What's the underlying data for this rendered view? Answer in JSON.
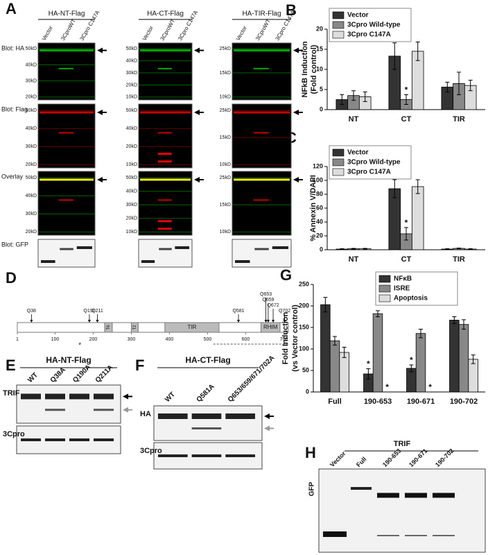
{
  "letters": [
    "A",
    "B",
    "C",
    "D",
    "E",
    "F",
    "G",
    "H"
  ],
  "panel_a": {
    "rows": [
      "Blot: HA",
      "Blot: Flag",
      "Overlay",
      "Blot: GFP"
    ],
    "columns": [
      {
        "title": "HA-NT-Flag",
        "lanes": [
          "Vector",
          "3CproWT",
          "3Cpro C147A"
        ],
        "markers": [
          [
            "50kD",
            "40kD",
            "30kD",
            "20kD"
          ],
          [
            "50kD",
            "40kD",
            "30kD",
            "20kD"
          ],
          [
            "50kD",
            "40kD",
            "30kD",
            "20kD"
          ]
        ]
      },
      {
        "title": "HA-CT-Flag",
        "lanes": [
          "Vector",
          "3CproWT",
          "3Cpro C147A"
        ],
        "markers": [
          [
            "50kD",
            "40kD",
            "30kD",
            "20kD",
            "10kD"
          ],
          [
            "50kD",
            "40kD",
            "20kD",
            "10kD"
          ],
          [
            "50kD",
            "40kD",
            "30kD",
            "20kD",
            "10kD"
          ]
        ]
      },
      {
        "title": "HA-TIR-Flag",
        "lanes": [
          "Vector",
          "3CproWT",
          "3Cpro C147A"
        ],
        "markers": [
          [
            "25kD",
            "15kD",
            "10kD"
          ],
          [
            "25kD",
            "15kD",
            "10kD"
          ],
          [
            "25kD",
            "15kD",
            "10kD"
          ]
        ]
      }
    ]
  },
  "panel_d": {
    "sites": [
      "Q38",
      "Q190",
      "Q211",
      "Q581",
      "Q653",
      "Q659",
      "Q672",
      "Q702"
    ],
    "domains": [
      "T6",
      "T2",
      "TIR",
      "RHIM"
    ],
    "scale": [
      1,
      100,
      200,
      300,
      400,
      500,
      600,
      700
    ],
    "note": "*"
  },
  "panel_e": {
    "title": "HA-NT-Flag",
    "lanes": [
      "WT",
      "Q38A",
      "Q190A",
      "Q211A"
    ],
    "rows": [
      "TRIF",
      "3Cpro"
    ]
  },
  "panel_f": {
    "title": "HA-CT-Flag",
    "lanes": [
      "WT",
      "Q581A",
      "Q653/659/671/702A"
    ],
    "rows": [
      "HA",
      "3Cpro"
    ]
  },
  "panel_h": {
    "group": "TRIF",
    "lanes": [
      "Vector",
      "Full",
      "190-653",
      "190-671",
      "190-702"
    ],
    "row": "GFP"
  },
  "chart_data": [
    {
      "type": "bar",
      "ylabel": [
        "NFkB Induction",
        "(Fold control)"
      ],
      "categories": [
        "NT",
        "CT",
        "TIR"
      ],
      "ylim": [
        0,
        20
      ],
      "yticks": [
        0,
        5,
        10,
        15,
        20
      ],
      "legend": "upper left",
      "series": [
        {
          "name": "Vector",
          "color": "#333333",
          "values": [
            2.5,
            13.3,
            5.6
          ],
          "errors": [
            1.2,
            3.3,
            1.2
          ],
          "annotations": [
            null,
            null,
            null
          ]
        },
        {
          "name": "3Cpro Wild-type",
          "color": "#888888",
          "values": [
            3.5,
            2.5,
            6.5
          ],
          "errors": [
            1.2,
            1.2,
            2.8
          ],
          "annotations": [
            null,
            "*",
            null
          ]
        },
        {
          "name": "3Cpro C147A",
          "color": "#dddddd",
          "values": [
            3.2,
            14.5,
            6.0
          ],
          "errors": [
            1.2,
            2.3,
            1.3
          ],
          "annotations": [
            null,
            null,
            null
          ]
        }
      ]
    },
    {
      "type": "bar",
      "ylabel": [
        "% Annexin V/DAPI"
      ],
      "categories": [
        "NT",
        "CT",
        "TIR"
      ],
      "ylim": [
        0,
        120
      ],
      "yticks": [
        0,
        20,
        40,
        60,
        80,
        100,
        120
      ],
      "legend": "upper left",
      "series": [
        {
          "name": "Vector",
          "color": "#333333",
          "values": [
            1,
            88,
            1
          ],
          "errors": [
            0.5,
            13,
            0.5
          ],
          "annotations": [
            null,
            null,
            null
          ]
        },
        {
          "name": "3Cpro Wild-type",
          "color": "#888888",
          "values": [
            1.5,
            23,
            2
          ],
          "errors": [
            0.5,
            9,
            0.5
          ],
          "annotations": [
            null,
            "*",
            null
          ]
        },
        {
          "name": "3Cpro C147A",
          "color": "#dddddd",
          "values": [
            1.5,
            91,
            1
          ],
          "errors": [
            0.5,
            10,
            0.5
          ],
          "annotations": [
            null,
            null,
            null
          ]
        }
      ]
    },
    {
      "type": "bar",
      "ylabel": [
        "Fold Induction",
        "(vs Vector control)"
      ],
      "categories": [
        "Full",
        "190-653",
        "190-671",
        "190-702"
      ],
      "ylim": [
        0,
        250
      ],
      "yticks": [
        0,
        50,
        100,
        150,
        200,
        250
      ],
      "legend": "upper right",
      "series": [
        {
          "name": "NFκB",
          "color": "#333333",
          "values": [
            203,
            42,
            55,
            167
          ],
          "errors": [
            17,
            12,
            8,
            8
          ],
          "annotations": [
            null,
            "*",
            "*",
            null
          ]
        },
        {
          "name": "ISRE",
          "color": "#888888",
          "values": [
            119,
            182,
            136,
            157
          ],
          "errors": [
            10,
            7,
            10,
            11
          ],
          "annotations": [
            null,
            null,
            null,
            null
          ]
        },
        {
          "name": "Apoptosis",
          "color": "#dddddd",
          "values": [
            92,
            0,
            0,
            76
          ],
          "errors": [
            12,
            0,
            0,
            10
          ],
          "annotations": [
            null,
            "*",
            "*",
            null
          ]
        }
      ]
    }
  ]
}
